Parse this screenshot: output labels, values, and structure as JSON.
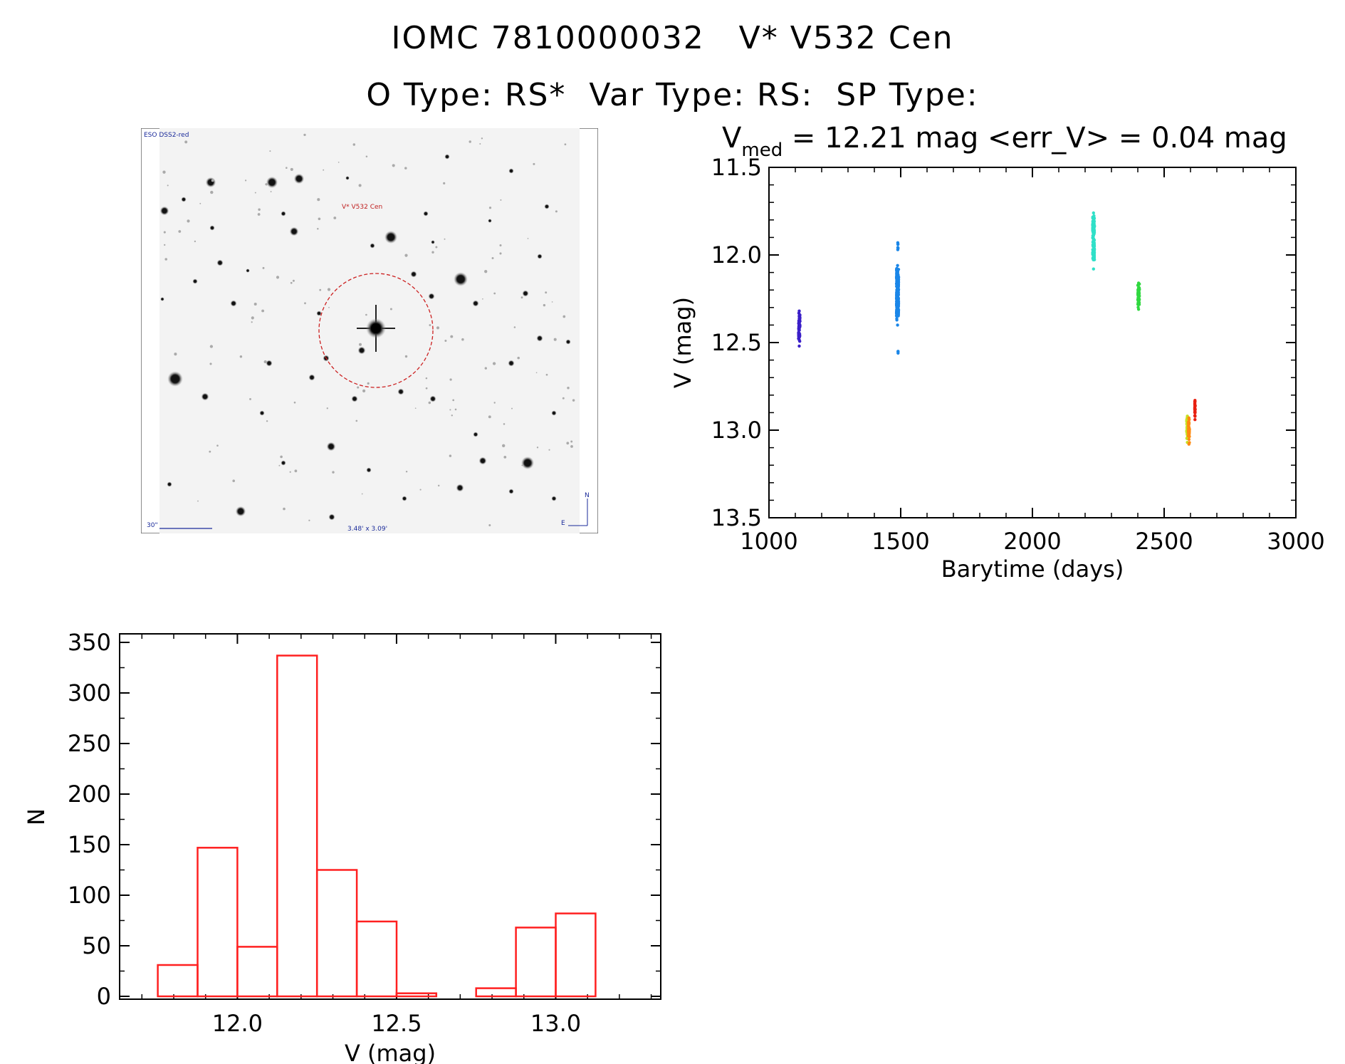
{
  "header": {
    "line1": "IOMC 7810000032   V* V532 Cen",
    "line2": "O Type: RS*  Var Type: RS:  SP Type:"
  },
  "finder_chart": {
    "survey_label": "ESO DSS2-red",
    "target_label": "V* V532 Cen",
    "scale_label": "30\"",
    "size_label": "3.48' x 3.09'",
    "compass_n": "N",
    "compass_e": "E"
  },
  "colors": {
    "histogram": "#ff2020",
    "circle": "#cc2020",
    "finder_text_blue": "#1a2a9a",
    "finder_text_red": "#c02020"
  },
  "chart_data": [
    {
      "type": "scatter",
      "title_main": "V",
      "title_sub": "med",
      "title_rest": " = 12.21 mag <err_V> = 0.04 mag",
      "xlabel": "Barytime (days)",
      "ylabel": "V (mag)",
      "xlim": [
        1000,
        3000
      ],
      "ylim": [
        13.5,
        11.5
      ],
      "y_inverted": true,
      "xticks": [
        1000,
        1500,
        2000,
        2500,
        3000
      ],
      "yticks": [
        11.5,
        12.0,
        12.5,
        13.0,
        13.5
      ],
      "series": [
        {
          "color": "#3a1fc8",
          "x": 1115,
          "x_spread": 6,
          "y_low": 12.32,
          "y_high": 12.52,
          "n": 60
        },
        {
          "color": "#1a86e8",
          "x": 1488,
          "x_spread": 8,
          "y_low": 12.06,
          "y_high": 12.4,
          "n": 300
        },
        {
          "color": "#1a86e8",
          "x": 1489,
          "x_spread": 2,
          "y_low": 11.93,
          "y_high": 11.97,
          "n": 4
        },
        {
          "color": "#1a86e8",
          "x": 1490,
          "x_spread": 1,
          "y_low": 12.55,
          "y_high": 12.56,
          "n": 1
        },
        {
          "color": "#30e0c8",
          "x": 2232,
          "x_spread": 7,
          "y_low": 11.76,
          "y_high": 12.08,
          "n": 140
        },
        {
          "color": "#30d840",
          "x": 2403,
          "x_spread": 6,
          "y_low": 12.16,
          "y_high": 12.31,
          "n": 60
        },
        {
          "color": "#c8e020",
          "x": 2588,
          "x_spread": 5,
          "y_low": 12.92,
          "y_high": 13.07,
          "n": 50
        },
        {
          "color": "#ff8a10",
          "x": 2594,
          "x_spread": 4,
          "y_low": 12.93,
          "y_high": 13.08,
          "n": 40
        },
        {
          "color": "#e82010",
          "x": 2617,
          "x_spread": 2,
          "y_low": 12.83,
          "y_high": 12.94,
          "n": 25
        }
      ]
    },
    {
      "type": "bar",
      "xlabel": "V (mag)",
      "ylabel": "N",
      "xlim": [
        11.63,
        13.33
      ],
      "ylim": [
        0,
        350
      ],
      "xticks": [
        12.0,
        12.5,
        13.0
      ],
      "xtick_labels": [
        "12.0",
        "12.5",
        "13.0"
      ],
      "yticks": [
        0,
        50,
        100,
        150,
        200,
        250,
        300,
        350
      ],
      "bin_width": 0.125,
      "bin_starts": [
        11.75,
        11.875,
        12.0,
        12.125,
        12.25,
        12.375,
        12.5,
        12.625,
        12.75,
        12.875,
        13.0
      ],
      "values": [
        31,
        147,
        49,
        337,
        125,
        74,
        3,
        0,
        8,
        68,
        82
      ]
    }
  ]
}
